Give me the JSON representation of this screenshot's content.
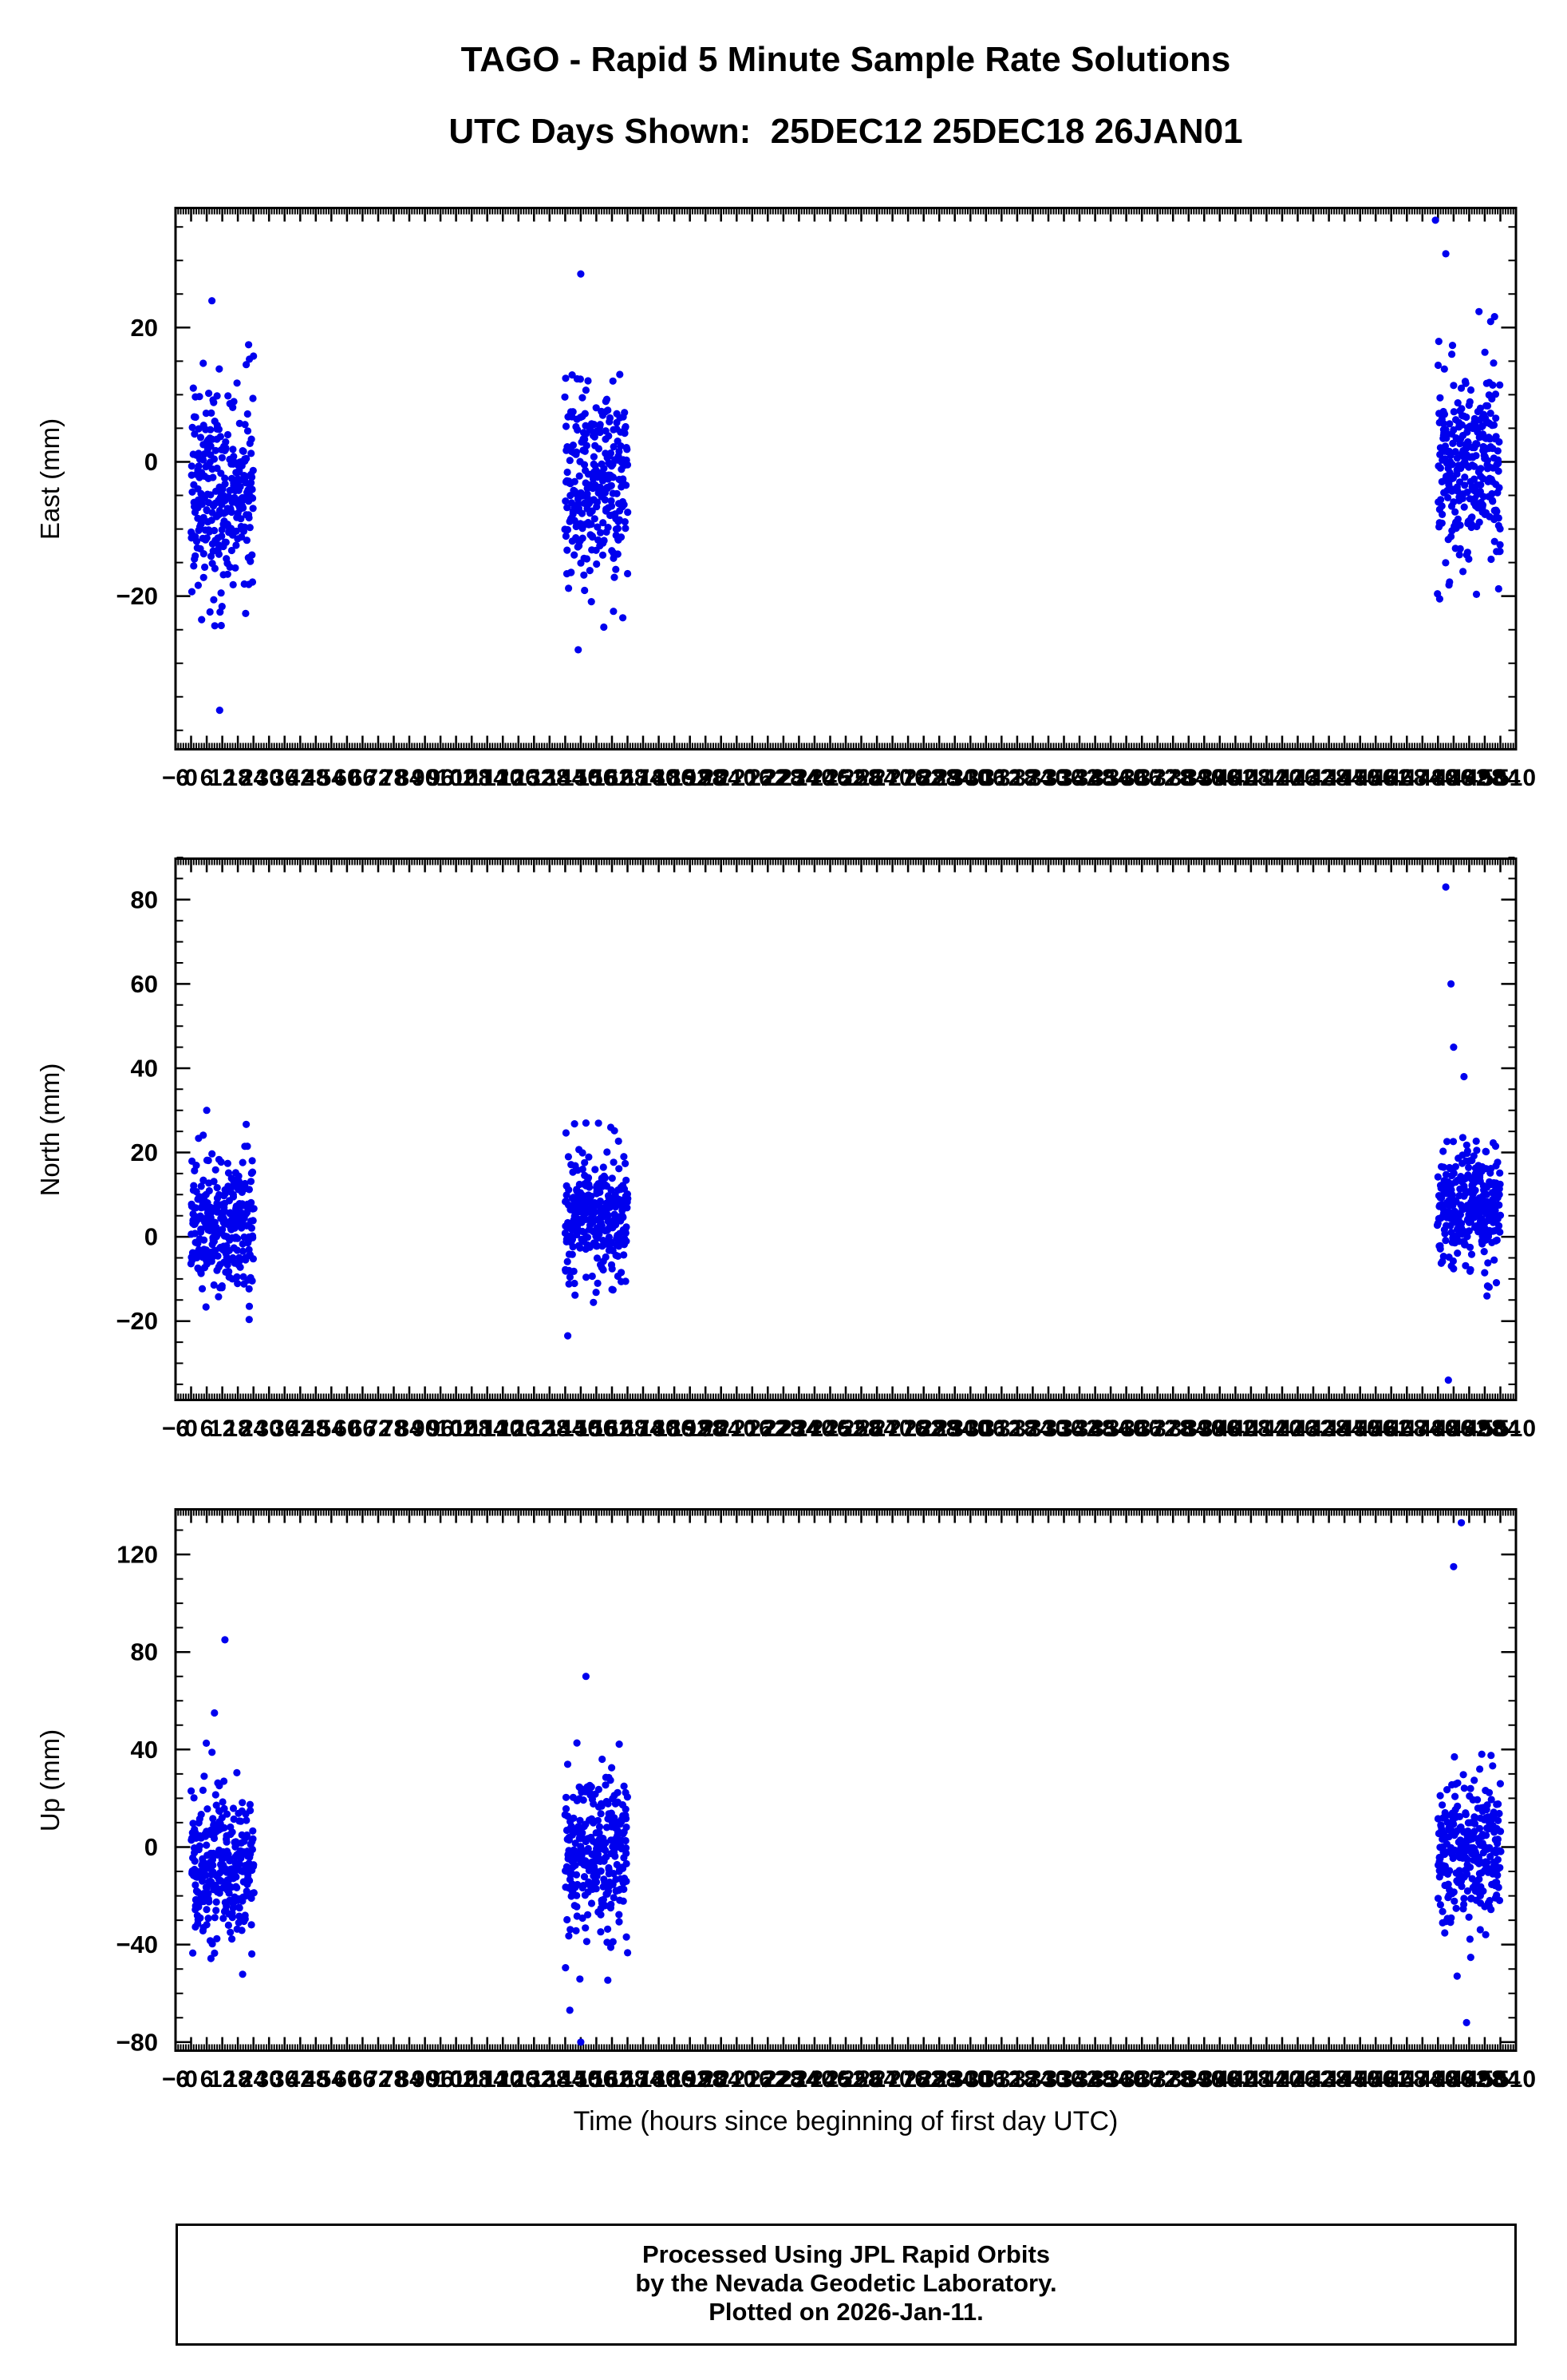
{
  "title": "TAGO - Rapid 5 Minute Sample Rate Solutions",
  "subtitle": "UTC Days Shown:  25DEC12 25DEC18 26JAN01",
  "xlabel": "Time (hours since beginning of first day UTC)",
  "footer": {
    "line1": "Processed Using JPL Rapid Orbits",
    "line2": "by the Nevada Geodetic Laboratory.",
    "line3": "Plotted on 2026-Jan-11."
  },
  "colors": {
    "points": "#0000EE",
    "frame": "#000000",
    "background": "#FFFFFF"
  },
  "days_shown": [
    "25DEC12",
    "25DEC18",
    "26JAN01"
  ],
  "chart_data": [
    {
      "type": "scatter",
      "title": "",
      "ylabel": "East (mm)",
      "xlabel": "",
      "xlim": [
        -6,
        510
      ],
      "ylim": [
        -43,
        38
      ],
      "yticks": [
        -20,
        0,
        20
      ],
      "y_minor_step": 5,
      "x_label_step": 6,
      "x_minor_step": 1,
      "grid": false,
      "legend": "none",
      "clusters": [
        {
          "x_start": 0,
          "x_end": 24,
          "n": 288,
          "mean": -5,
          "sd": 6.5,
          "min": -38,
          "max": 24,
          "seed": 11
        },
        {
          "x_start": 144,
          "x_end": 168,
          "n": 288,
          "mean": -3,
          "sd": 6.5,
          "min": -28,
          "max": 28,
          "seed": 12
        },
        {
          "x_start": 480,
          "x_end": 504,
          "n": 288,
          "mean": -1,
          "sd": 7.0,
          "min": -22,
          "max": 31,
          "seed": 13
        }
      ],
      "outliers": [
        [
          479,
          36
        ],
        [
          483,
          31
        ],
        [
          150,
          28
        ],
        [
          149,
          -28
        ],
        [
          8,
          24
        ],
        [
          11,
          -37
        ]
      ]
    },
    {
      "type": "scatter",
      "title": "",
      "ylabel": "North (mm)",
      "xlabel": "",
      "xlim": [
        -6,
        510
      ],
      "ylim": [
        -39,
        90
      ],
      "yticks": [
        -20,
        0,
        20,
        40,
        60,
        80
      ],
      "y_minor_step": 5,
      "x_label_step": 6,
      "x_minor_step": 1,
      "grid": false,
      "legend": "none",
      "clusters": [
        {
          "x_start": 0,
          "x_end": 24,
          "n": 288,
          "mean": 3,
          "sd": 8.0,
          "min": -23,
          "max": 30,
          "seed": 21
        },
        {
          "x_start": 144,
          "x_end": 168,
          "n": 288,
          "mean": 5,
          "sd": 7.0,
          "min": -25,
          "max": 28,
          "seed": 22
        },
        {
          "x_start": 480,
          "x_end": 504,
          "n": 288,
          "mean": 7,
          "sd": 6.5,
          "min": -16,
          "max": 26,
          "seed": 23
        }
      ],
      "outliers": [
        [
          483,
          83
        ],
        [
          485,
          60
        ],
        [
          486,
          45
        ],
        [
          490,
          38
        ],
        [
          484,
          -34
        ],
        [
          6,
          30
        ],
        [
          152,
          27
        ]
      ]
    },
    {
      "type": "scatter",
      "title": "",
      "ylabel": "Up (mm)",
      "xlabel": "Time (hours since beginning of first day UTC)",
      "xlim": [
        -6,
        510
      ],
      "ylim": [
        -84,
        139
      ],
      "yticks": [
        -80,
        -40,
        0,
        40,
        80,
        120
      ],
      "y_minor_step": 10,
      "x_label_step": 6,
      "x_minor_step": 1,
      "grid": false,
      "legend": "none",
      "clusters": [
        {
          "x_start": 0,
          "x_end": 24,
          "n": 288,
          "mean": -8,
          "sd": 15.0,
          "min": -60,
          "max": 58,
          "seed": 31
        },
        {
          "x_start": 144,
          "x_end": 168,
          "n": 288,
          "mean": -4,
          "sd": 16.0,
          "min": -72,
          "max": 62,
          "seed": 32
        },
        {
          "x_start": 480,
          "x_end": 504,
          "n": 288,
          "mean": -2,
          "sd": 14.0,
          "min": -58,
          "max": 46,
          "seed": 33
        }
      ],
      "outliers": [
        [
          13,
          85
        ],
        [
          9,
          55
        ],
        [
          152,
          70
        ],
        [
          150,
          -80
        ],
        [
          489,
          133
        ],
        [
          486,
          115
        ],
        [
          491,
          -72
        ]
      ]
    }
  ]
}
